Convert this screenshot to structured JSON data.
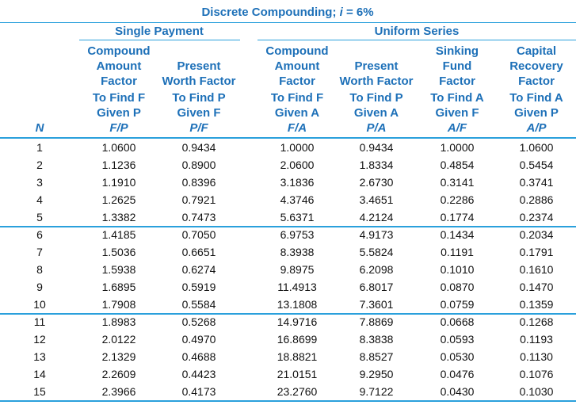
{
  "title": {
    "prefix": "Discrete Compounding; ",
    "variable": "i",
    "suffix": " = 6%"
  },
  "groups": [
    "Single Payment",
    "Uniform Series"
  ],
  "n_header": "N",
  "columns": [
    {
      "name": [
        "Compound",
        "Amount",
        "Factor"
      ],
      "find": "To Find F",
      "given": "Given P",
      "symbol": "F/P"
    },
    {
      "name": [
        "Present",
        "Worth Factor"
      ],
      "find": "To Find P",
      "given": "Given F",
      "symbol": "P/F"
    },
    {
      "name": [
        "Compound",
        "Amount",
        "Factor"
      ],
      "find": "To Find F",
      "given": "Given A",
      "symbol": "F/A"
    },
    {
      "name": [
        "Present",
        "Worth Factor"
      ],
      "find": "To Find P",
      "given": "Given A",
      "symbol": "P/A"
    },
    {
      "name": [
        "Sinking",
        "Fund",
        "Factor"
      ],
      "find": "To Find A",
      "given": "Given F",
      "symbol": "A/F"
    },
    {
      "name": [
        "Capital",
        "Recovery",
        "Factor"
      ],
      "find": "To Find A",
      "given": "Given P",
      "symbol": "A/P"
    }
  ],
  "rows": [
    [
      "1",
      "1.0600",
      "0.9434",
      "1.0000",
      "0.9434",
      "1.0000",
      "1.0600"
    ],
    [
      "2",
      "1.1236",
      "0.8900",
      "2.0600",
      "1.8334",
      "0.4854",
      "0.5454"
    ],
    [
      "3",
      "1.1910",
      "0.8396",
      "3.1836",
      "2.6730",
      "0.3141",
      "0.3741"
    ],
    [
      "4",
      "1.2625",
      "0.7921",
      "4.3746",
      "3.4651",
      "0.2286",
      "0.2886"
    ],
    [
      "5",
      "1.3382",
      "0.7473",
      "5.6371",
      "4.2124",
      "0.1774",
      "0.2374"
    ],
    [
      "6",
      "1.4185",
      "0.7050",
      "6.9753",
      "4.9173",
      "0.1434",
      "0.2034"
    ],
    [
      "7",
      "1.5036",
      "0.6651",
      "8.3938",
      "5.5824",
      "0.1191",
      "0.1791"
    ],
    [
      "8",
      "1.5938",
      "0.6274",
      "9.8975",
      "6.2098",
      "0.1010",
      "0.1610"
    ],
    [
      "9",
      "1.6895",
      "0.5919",
      "11.4913",
      "6.8017",
      "0.0870",
      "0.1470"
    ],
    [
      "10",
      "1.7908",
      "0.5584",
      "13.1808",
      "7.3601",
      "0.0759",
      "0.1359"
    ],
    [
      "11",
      "1.8983",
      "0.5268",
      "14.9716",
      "7.8869",
      "0.0668",
      "0.1268"
    ],
    [
      "12",
      "2.0122",
      "0.4970",
      "16.8699",
      "8.3838",
      "0.0593",
      "0.1193"
    ],
    [
      "13",
      "2.1329",
      "0.4688",
      "18.8821",
      "8.8527",
      "0.0530",
      "0.1130"
    ],
    [
      "14",
      "2.2609",
      "0.4423",
      "21.0151",
      "9.2950",
      "0.0476",
      "0.1076"
    ],
    [
      "15",
      "2.3966",
      "0.4173",
      "23.2760",
      "9.7122",
      "0.0430",
      "0.1030"
    ]
  ]
}
